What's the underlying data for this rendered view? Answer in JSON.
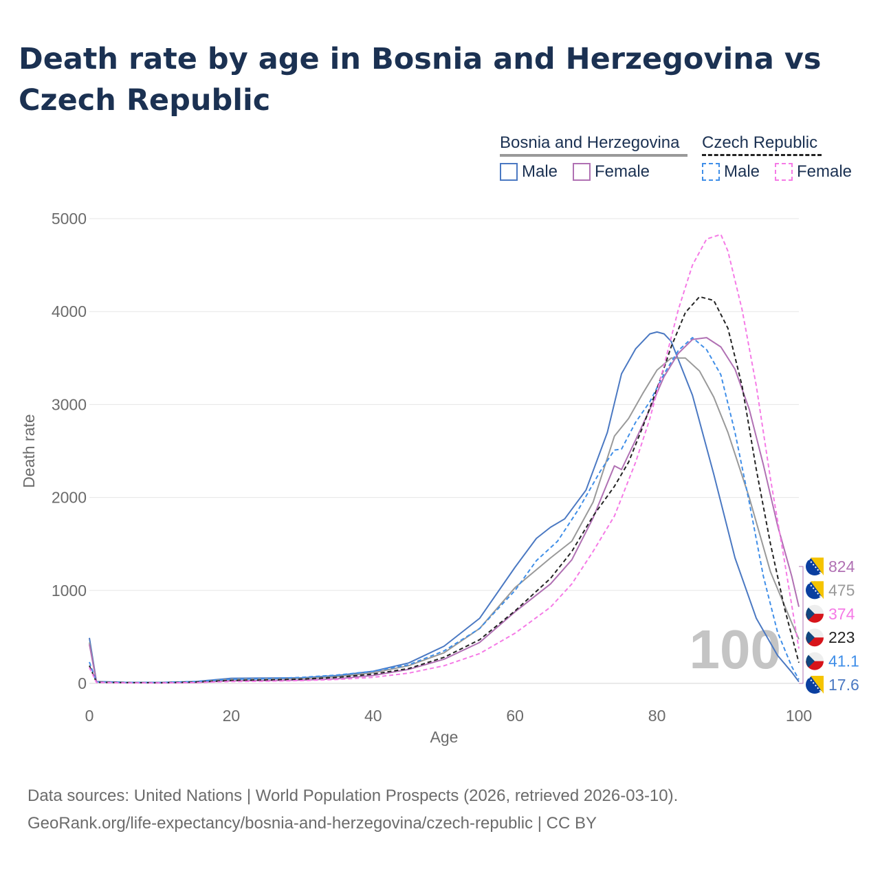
{
  "title": "Death rate by age in Bosnia and Herzegovina vs Czech Republic",
  "legend": {
    "groups": [
      {
        "label": "Bosnia and Herzegovina",
        "line_color": "#999999",
        "line_style": "solid"
      },
      {
        "label": "Czech Republic",
        "line_color": "#222222",
        "line_style": "dashed"
      }
    ],
    "items": [
      {
        "label": "Male",
        "color": "#4a78c2",
        "style": "solid"
      },
      {
        "label": "Female",
        "color": "#b070b3",
        "style": "solid"
      },
      {
        "label": "Male",
        "color": "#3f8ee8",
        "style": "dashed"
      },
      {
        "label": "Female",
        "color": "#f57ae6",
        "style": "dashed"
      }
    ]
  },
  "source": {
    "line1": "Data sources: United Nations | World Population Prospects (2026, retrieved 2026-03-10).",
    "line2": "GeoRank.org/life-expectancy/bosnia-and-herzegovina/czech-republic | CC BY"
  },
  "chart_data": {
    "type": "line",
    "xlabel": "Age",
    "ylabel": "Death rate",
    "xlim": [
      0,
      100
    ],
    "ylim": [
      0,
      5000
    ],
    "x_ticks": [
      0,
      20,
      40,
      60,
      80,
      100
    ],
    "y_ticks": [
      0,
      1000,
      2000,
      3000,
      4000,
      5000
    ],
    "grid": true,
    "watermark": "100",
    "series": [
      {
        "name": "Bosnia and Herzegovina – Male",
        "color": "#4a78c2",
        "dashed": false,
        "points": [
          [
            0,
            490
          ],
          [
            1,
            20
          ],
          [
            5,
            12
          ],
          [
            10,
            10
          ],
          [
            15,
            20
          ],
          [
            20,
            55
          ],
          [
            25,
            58
          ],
          [
            30,
            60
          ],
          [
            35,
            85
          ],
          [
            40,
            130
          ],
          [
            45,
            220
          ],
          [
            50,
            400
          ],
          [
            55,
            700
          ],
          [
            60,
            1250
          ],
          [
            63,
            1560
          ],
          [
            65,
            1680
          ],
          [
            67,
            1770
          ],
          [
            70,
            2080
          ],
          [
            73,
            2700
          ],
          [
            75,
            3330
          ],
          [
            77,
            3600
          ],
          [
            79,
            3760
          ],
          [
            80,
            3780
          ],
          [
            81,
            3760
          ],
          [
            82,
            3680
          ],
          [
            85,
            3100
          ],
          [
            88,
            2250
          ],
          [
            91,
            1350
          ],
          [
            94,
            700
          ],
          [
            97,
            300
          ],
          [
            99,
            120
          ],
          [
            100,
            17.6
          ]
        ]
      },
      {
        "name": "Bosnia and Herzegovina – Total",
        "color": "#999999",
        "dashed": false,
        "points": [
          [
            0,
            440
          ],
          [
            1,
            18
          ],
          [
            5,
            10
          ],
          [
            10,
            8
          ],
          [
            15,
            16
          ],
          [
            20,
            45
          ],
          [
            25,
            48
          ],
          [
            30,
            52
          ],
          [
            35,
            72
          ],
          [
            40,
            115
          ],
          [
            45,
            190
          ],
          [
            50,
            330
          ],
          [
            55,
            590
          ],
          [
            60,
            1030
          ],
          [
            65,
            1350
          ],
          [
            68,
            1530
          ],
          [
            71,
            1950
          ],
          [
            74,
            2660
          ],
          [
            76,
            2850
          ],
          [
            78,
            3120
          ],
          [
            80,
            3370
          ],
          [
            82,
            3500
          ],
          [
            84,
            3500
          ],
          [
            86,
            3360
          ],
          [
            88,
            3080
          ],
          [
            90,
            2700
          ],
          [
            93,
            2000
          ],
          [
            96,
            1200
          ],
          [
            99,
            650
          ],
          [
            100,
            475
          ]
        ]
      },
      {
        "name": "Bosnia and Herzegovina – Female",
        "color": "#b070b3",
        "dashed": false,
        "points": [
          [
            0,
            420
          ],
          [
            1,
            16
          ],
          [
            5,
            8
          ],
          [
            10,
            6
          ],
          [
            15,
            10
          ],
          [
            20,
            28
          ],
          [
            25,
            30
          ],
          [
            30,
            35
          ],
          [
            35,
            50
          ],
          [
            40,
            85
          ],
          [
            45,
            150
          ],
          [
            50,
            260
          ],
          [
            55,
            440
          ],
          [
            60,
            770
          ],
          [
            65,
            1070
          ],
          [
            68,
            1330
          ],
          [
            71,
            1780
          ],
          [
            74,
            2340
          ],
          [
            75,
            2300
          ],
          [
            77,
            2620
          ],
          [
            79,
            2950
          ],
          [
            81,
            3300
          ],
          [
            83,
            3550
          ],
          [
            85,
            3700
          ],
          [
            87,
            3720
          ],
          [
            89,
            3620
          ],
          [
            91,
            3380
          ],
          [
            93,
            2950
          ],
          [
            95,
            2350
          ],
          [
            97,
            1700
          ],
          [
            99,
            1150
          ],
          [
            100,
            824
          ]
        ]
      },
      {
        "name": "Czech Republic – Male",
        "color": "#3f8ee8",
        "dashed": true,
        "points": [
          [
            0,
            230
          ],
          [
            1,
            15
          ],
          [
            5,
            10
          ],
          [
            10,
            9
          ],
          [
            15,
            20
          ],
          [
            20,
            45
          ],
          [
            25,
            50
          ],
          [
            30,
            65
          ],
          [
            35,
            90
          ],
          [
            40,
            130
          ],
          [
            45,
            200
          ],
          [
            50,
            350
          ],
          [
            55,
            590
          ],
          [
            60,
            1000
          ],
          [
            63,
            1320
          ],
          [
            66,
            1530
          ],
          [
            69,
            1880
          ],
          [
            72,
            2280
          ],
          [
            74,
            2510
          ],
          [
            75,
            2520
          ],
          [
            77,
            2810
          ],
          [
            79,
            3030
          ],
          [
            81,
            3330
          ],
          [
            83,
            3580
          ],
          [
            85,
            3720
          ],
          [
            87,
            3590
          ],
          [
            89,
            3320
          ],
          [
            91,
            2700
          ],
          [
            93,
            1950
          ],
          [
            95,
            1150
          ],
          [
            97,
            550
          ],
          [
            99,
            180
          ],
          [
            100,
            41.1
          ]
        ]
      },
      {
        "name": "Czech Republic – Total",
        "color": "#222222",
        "dashed": true,
        "points": [
          [
            0,
            190
          ],
          [
            1,
            12
          ],
          [
            5,
            8
          ],
          [
            10,
            7
          ],
          [
            15,
            14
          ],
          [
            20,
            32
          ],
          [
            25,
            36
          ],
          [
            30,
            46
          ],
          [
            35,
            65
          ],
          [
            40,
            100
          ],
          [
            45,
            160
          ],
          [
            50,
            280
          ],
          [
            55,
            470
          ],
          [
            60,
            780
          ],
          [
            65,
            1130
          ],
          [
            68,
            1420
          ],
          [
            71,
            1800
          ],
          [
            74,
            2120
          ],
          [
            76,
            2380
          ],
          [
            78,
            2760
          ],
          [
            80,
            3170
          ],
          [
            82,
            3620
          ],
          [
            84,
            3990
          ],
          [
            86,
            4160
          ],
          [
            88,
            4120
          ],
          [
            90,
            3820
          ],
          [
            92,
            3200
          ],
          [
            94,
            2300
          ],
          [
            96,
            1500
          ],
          [
            98,
            800
          ],
          [
            100,
            223
          ]
        ]
      },
      {
        "name": "Czech Republic – Female",
        "color": "#f57ae6",
        "dashed": true,
        "points": [
          [
            0,
            170
          ],
          [
            1,
            10
          ],
          [
            5,
            6
          ],
          [
            10,
            5
          ],
          [
            15,
            9
          ],
          [
            20,
            20
          ],
          [
            25,
            24
          ],
          [
            30,
            30
          ],
          [
            35,
            42
          ],
          [
            40,
            65
          ],
          [
            45,
            110
          ],
          [
            50,
            190
          ],
          [
            55,
            320
          ],
          [
            60,
            540
          ],
          [
            65,
            820
          ],
          [
            68,
            1070
          ],
          [
            71,
            1420
          ],
          [
            74,
            1800
          ],
          [
            77,
            2380
          ],
          [
            79,
            2850
          ],
          [
            81,
            3420
          ],
          [
            83,
            4020
          ],
          [
            85,
            4500
          ],
          [
            87,
            4780
          ],
          [
            89,
            4830
          ],
          [
            90,
            4650
          ],
          [
            92,
            4020
          ],
          [
            94,
            3200
          ],
          [
            96,
            2200
          ],
          [
            98,
            1300
          ],
          [
            100,
            374
          ]
        ]
      }
    ],
    "end_labels": [
      {
        "value": "824",
        "color": "#b070b3",
        "flag": "bosnia"
      },
      {
        "value": "475",
        "color": "#999999",
        "flag": "bosnia"
      },
      {
        "value": "374",
        "color": "#f57ae6",
        "flag": "czech"
      },
      {
        "value": "223",
        "color": "#222222",
        "flag": "czech"
      },
      {
        "value": "41.1",
        "color": "#3f8ee8",
        "flag": "czech"
      },
      {
        "value": "17.6",
        "color": "#4a78c2",
        "flag": "bosnia"
      }
    ]
  }
}
